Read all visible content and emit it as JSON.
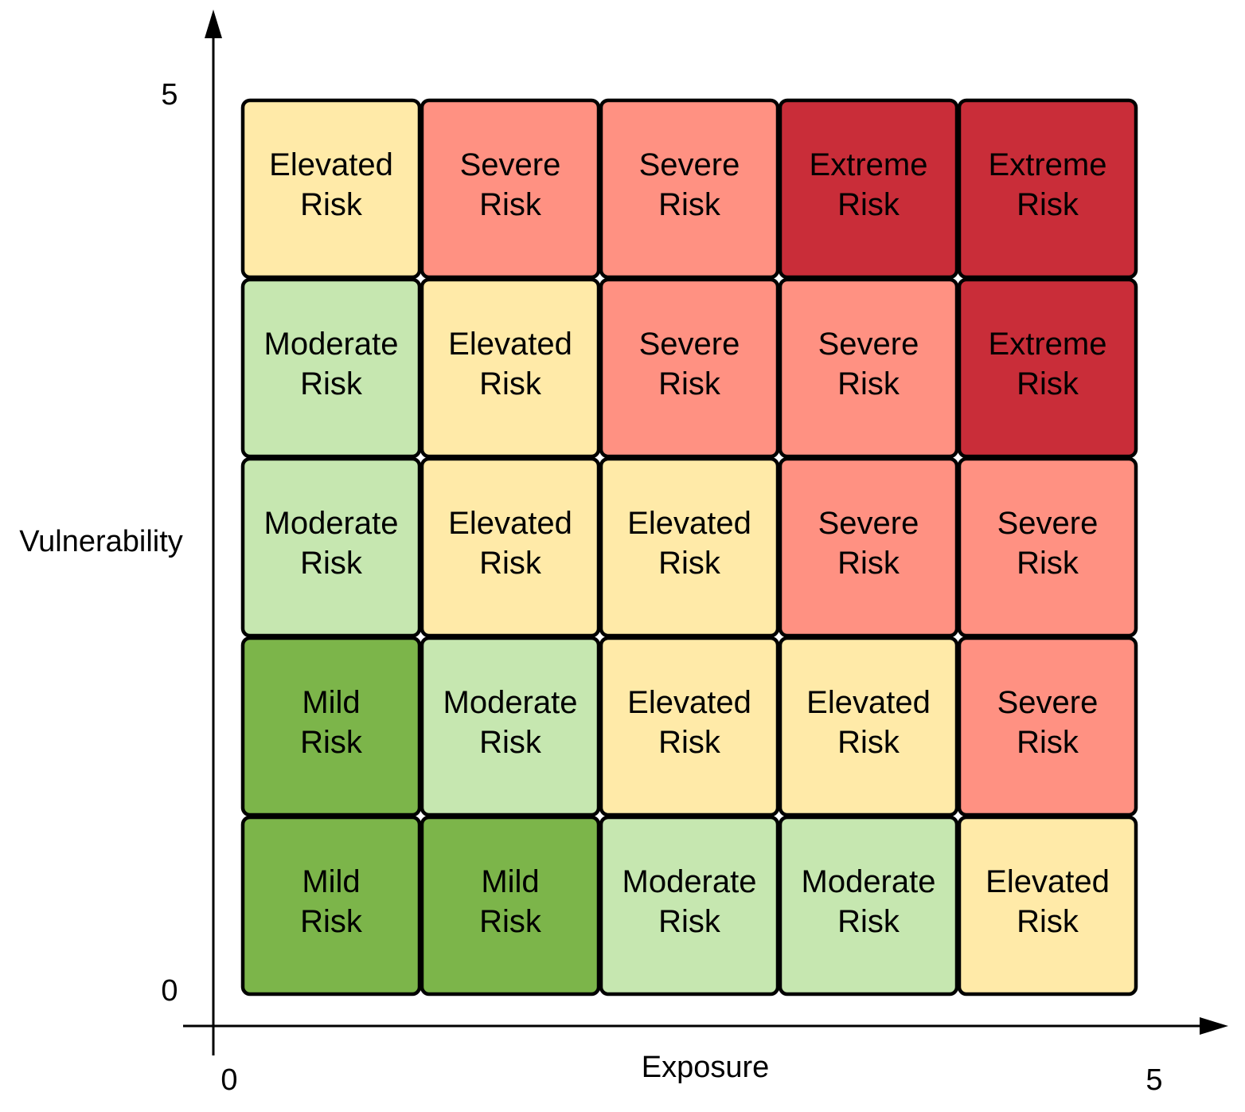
{
  "chart_data": {
    "type": "heatmap",
    "xlabel": "Exposure",
    "ylabel": "Vulnerability",
    "x_ticks": [
      "0",
      "5"
    ],
    "y_ticks": [
      "0",
      "5"
    ],
    "xlim": [
      0,
      5
    ],
    "ylim": [
      0,
      5
    ],
    "grid": false,
    "colors": {
      "Mild": "#7cb54a",
      "Moderate": "#c6e7b0",
      "Elevated": "#ffeaa8",
      "Severe": "#ff9182",
      "Extreme": "#c92d39"
    },
    "rows": [
      {
        "vulnerability_level": 5,
        "cells": [
          {
            "level": "Elevated",
            "line1": "Elevated",
            "line2": "Risk"
          },
          {
            "level": "Severe",
            "line1": "Severe",
            "line2": "Risk"
          },
          {
            "level": "Severe",
            "line1": "Severe",
            "line2": "Risk"
          },
          {
            "level": "Extreme",
            "line1": "Extreme",
            "line2": "Risk"
          },
          {
            "level": "Extreme",
            "line1": "Extreme",
            "line2": "Risk"
          }
        ]
      },
      {
        "vulnerability_level": 4,
        "cells": [
          {
            "level": "Moderate",
            "line1": "Moderate",
            "line2": "Risk"
          },
          {
            "level": "Elevated",
            "line1": "Elevated",
            "line2": "Risk"
          },
          {
            "level": "Severe",
            "line1": "Severe",
            "line2": "Risk"
          },
          {
            "level": "Severe",
            "line1": "Severe",
            "line2": "Risk"
          },
          {
            "level": "Extreme",
            "line1": "Extreme",
            "line2": "Risk"
          }
        ]
      },
      {
        "vulnerability_level": 3,
        "cells": [
          {
            "level": "Moderate",
            "line1": "Moderate",
            "line2": "Risk"
          },
          {
            "level": "Elevated",
            "line1": "Elevated",
            "line2": "Risk"
          },
          {
            "level": "Elevated",
            "line1": "Elevated",
            "line2": "Risk"
          },
          {
            "level": "Severe",
            "line1": "Severe",
            "line2": "Risk"
          },
          {
            "level": "Severe",
            "line1": "Severe",
            "line2": "Risk"
          }
        ]
      },
      {
        "vulnerability_level": 2,
        "cells": [
          {
            "level": "Mild",
            "line1": "Mild",
            "line2": "Risk"
          },
          {
            "level": "Moderate",
            "line1": "Moderate",
            "line2": "Risk"
          },
          {
            "level": "Elevated",
            "line1": "Elevated",
            "line2": "Risk"
          },
          {
            "level": "Elevated",
            "line1": "Elevated",
            "line2": "Risk"
          },
          {
            "level": "Severe",
            "line1": "Severe",
            "line2": "Risk"
          }
        ]
      },
      {
        "vulnerability_level": 1,
        "cells": [
          {
            "level": "Mild",
            "line1": "Mild",
            "line2": "Risk"
          },
          {
            "level": "Mild",
            "line1": "Mild",
            "line2": "Risk"
          },
          {
            "level": "Moderate",
            "line1": "Moderate",
            "line2": "Risk"
          },
          {
            "level": "Moderate",
            "line1": "Moderate",
            "line2": "Risk"
          },
          {
            "level": "Elevated",
            "line1": "Elevated",
            "line2": "Risk"
          }
        ]
      }
    ]
  }
}
